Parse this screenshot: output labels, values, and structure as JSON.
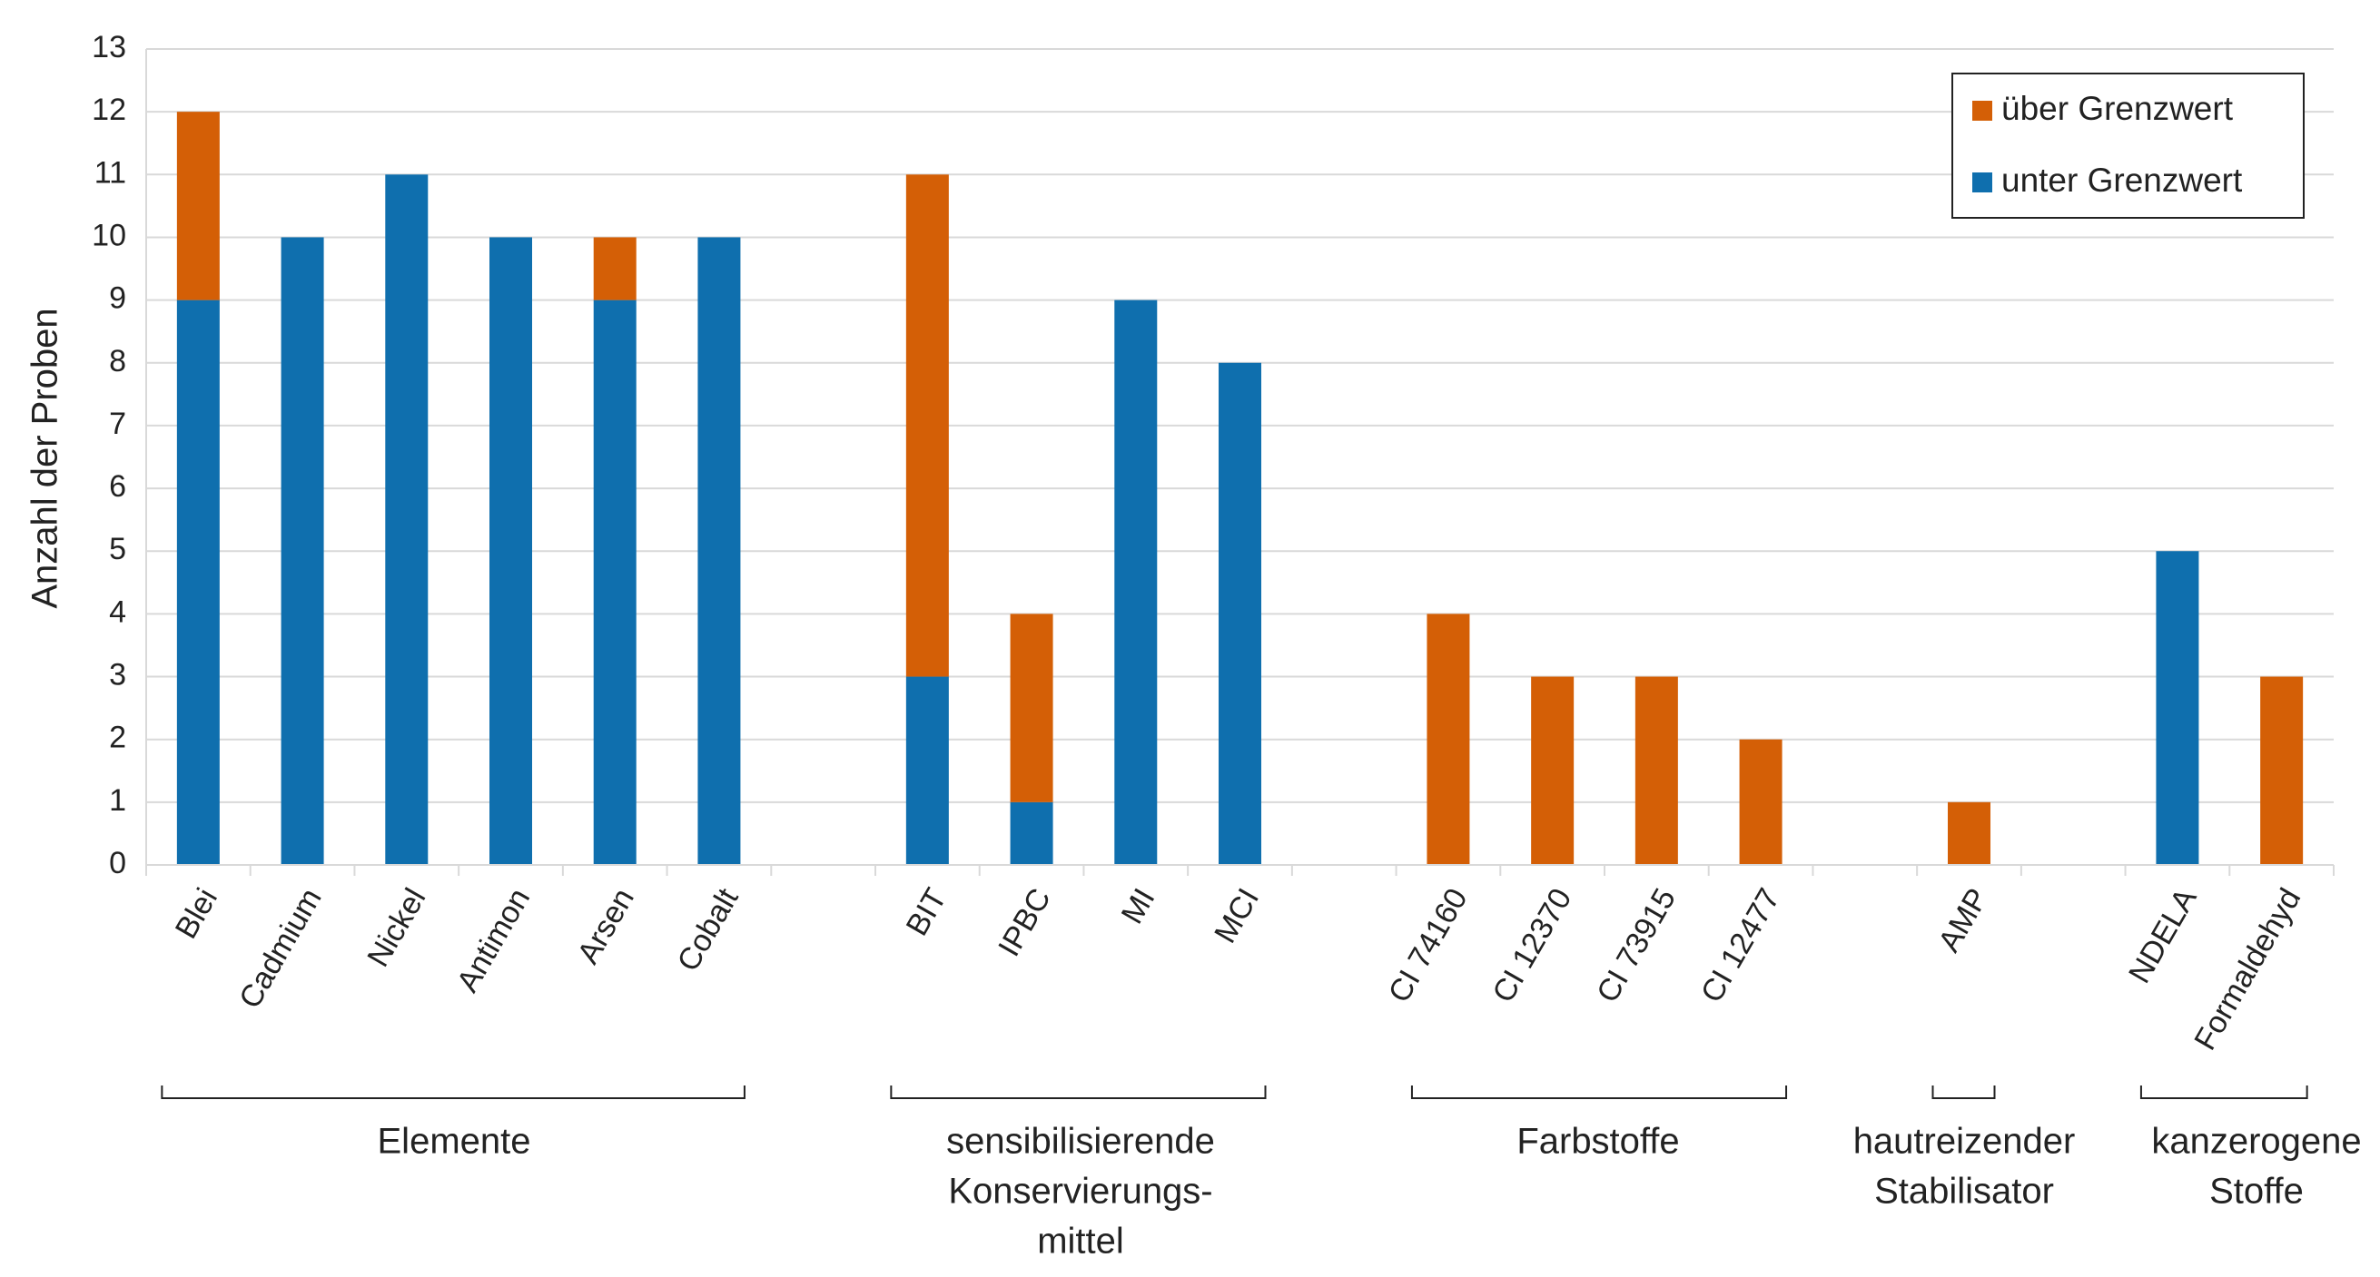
{
  "chart_data": {
    "type": "bar",
    "stacked": true,
    "y_label": "Anzahl der Proben",
    "categories": [
      "Blei",
      "Cadmium",
      "Nickel",
      "Antimon",
      "Arsen",
      "Cobalt",
      null,
      "BIT",
      "IPBC",
      "MI",
      "MCI",
      null,
      "CI 74160",
      "CI 12370",
      "CI 73915",
      "CI 12477",
      null,
      "AMP",
      null,
      "NDELA",
      "Formaldehyd"
    ],
    "series": [
      {
        "name": "unter Grenzwert",
        "color": "#0f6fae",
        "values": [
          9,
          10,
          11,
          10,
          9,
          10,
          null,
          3,
          1,
          9,
          8,
          null,
          0,
          0,
          0,
          0,
          null,
          0,
          null,
          5,
          0
        ]
      },
      {
        "name": "über Grenzwert",
        "color": "#d45f06",
        "values": [
          3,
          0,
          0,
          0,
          1,
          0,
          null,
          8,
          3,
          0,
          0,
          null,
          4,
          3,
          3,
          2,
          null,
          1,
          null,
          0,
          3
        ]
      }
    ],
    "groups": [
      {
        "label": [
          "Elemente"
        ]
      },
      {
        "label": [
          "sensibilisierende",
          "Konservierungs-",
          "mittel"
        ]
      },
      {
        "label": [
          "Farbstoffe"
        ]
      },
      {
        "label": [
          "hautreizender",
          "Stabilisator"
        ]
      },
      {
        "label": [
          "kanzerogene",
          "Stoffe"
        ]
      }
    ],
    "ylim": [
      0,
      13
    ],
    "yticks": [
      0,
      1,
      2,
      3,
      4,
      5,
      6,
      7,
      8,
      9,
      10,
      11,
      12,
      13
    ],
    "grid": true,
    "legend": "top-right"
  }
}
